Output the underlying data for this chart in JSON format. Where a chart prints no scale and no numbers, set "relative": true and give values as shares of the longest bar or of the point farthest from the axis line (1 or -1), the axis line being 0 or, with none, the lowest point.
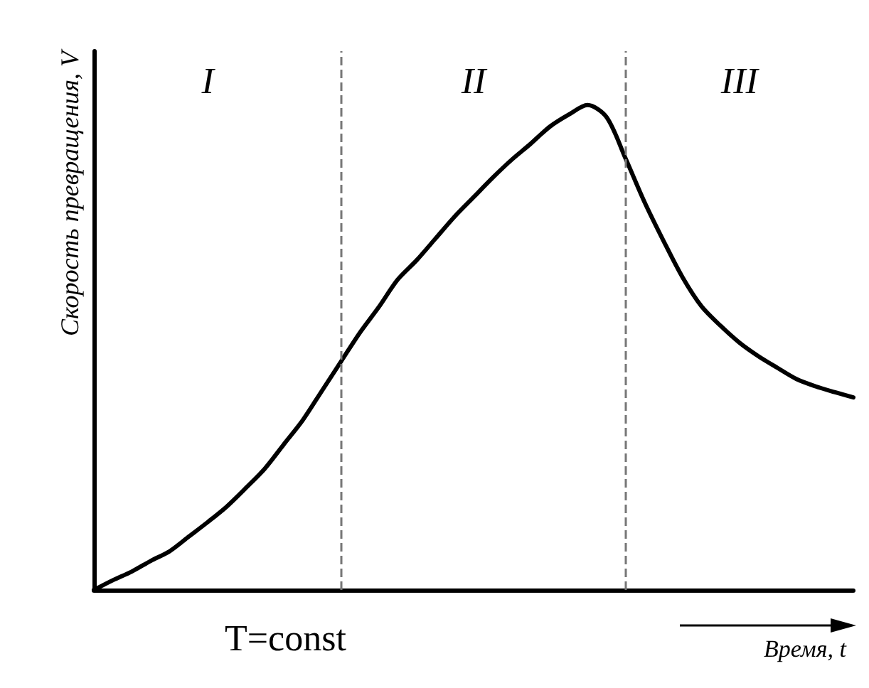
{
  "chart_data": {
    "type": "line",
    "relative": true,
    "xlabel": "Время, t",
    "ylabel": "Скорость превращения, V",
    "color": "#000000",
    "marker": "none",
    "line_style": "solid",
    "grid": false,
    "tick_labels": "x",
    "categories": [
      null,
      null,
      null,
      null,
      null,
      null,
      "I",
      null,
      null,
      null,
      null,
      null,
      null,
      null,
      null,
      null,
      null,
      null,
      null,
      null,
      "II",
      null,
      null,
      null,
      null,
      null,
      null,
      null,
      null,
      null,
      null,
      null,
      null,
      null,
      "III",
      null,
      null,
      null,
      null,
      null,
      null
    ],
    "values": [
      0,
      0.02,
      0.038,
      0.06,
      0.08,
      0.11,
      0.14,
      0.172,
      0.21,
      0.25,
      0.3,
      0.35,
      0.41,
      0.47,
      0.53,
      0.583,
      0.64,
      0.68,
      0.725,
      0.77,
      0.81,
      0.85,
      0.887,
      0.92,
      0.955,
      0.98,
      1.0,
      0.975,
      0.89,
      0.8,
      0.72,
      0.645,
      0.585,
      0.545,
      0.51,
      0.482,
      0.458,
      0.435,
      0.42,
      0.408,
      0.397
    ],
    "annotations": [
      "T=const"
    ]
  }
}
